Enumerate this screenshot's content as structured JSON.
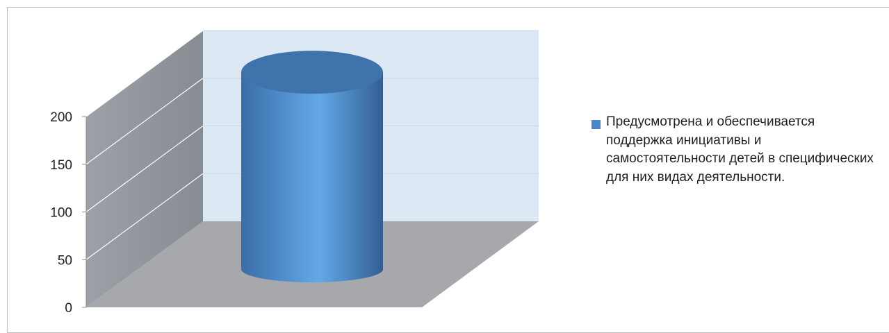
{
  "chart_data": {
    "type": "bar",
    "shape": "cylinder",
    "title": "",
    "xlabel": "",
    "ylabel": "",
    "categories": [
      ""
    ],
    "series": [
      {
        "name": "Предусмотрена и обеспечивается поддержка инициативы и самостоятельности детей в специфических для них видах деятельности.",
        "values": [
          205
        ],
        "color": "#4a86c8"
      }
    ],
    "ylim": [
      0,
      200
    ],
    "yticks": [
      "0",
      "50",
      "100",
      "150",
      "200"
    ],
    "grid": true,
    "legend_position": "right",
    "colors": {
      "back_wall": "#dde8f5",
      "side_wall": "#8b9196",
      "floor": "#a6a8ab",
      "gridline": "#c9d5e3"
    }
  }
}
